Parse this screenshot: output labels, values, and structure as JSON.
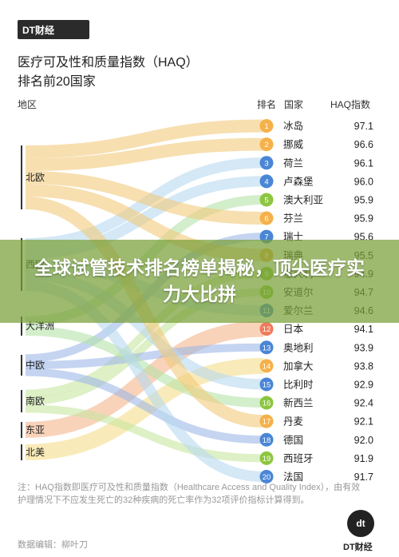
{
  "brand": {
    "name": "DT财经"
  },
  "heading": {
    "line1": "医疗可及性和质量指数（HAQ）",
    "line2": "排名前20国家"
  },
  "columns": {
    "region": "地区",
    "rank": "排名",
    "country": "国家",
    "haq": "HAQ指数"
  },
  "banner": {
    "text": "全球试管技术排名榜单揭秘，顶尖医疗实力大比拼"
  },
  "note": {
    "text": "注：HAQ指数即医疗可及性和质量指数（Healthcare Access and Quality Index），由有效护理情况下不应发生死亡的32种疾病的死亡率作为32项评价指标计算得到。"
  },
  "author": {
    "text": "数据编辑：柳叶刀"
  },
  "colors": {
    "北欧": "#f1ca7c",
    "西欧": "#b8d9f0",
    "大洋洲": "#b6e2a8",
    "中欧": "#9fb8e8",
    "南欧": "#c8e6a0",
    "东亚": "#f3b68c",
    "北美": "#f5dd8a",
    "badge_orange": "#f5b14a",
    "badge_blue": "#4a86d6",
    "badge_green": "#8cc63f",
    "badge_red": "#ef7b5c"
  },
  "chart_data": {
    "type": "table",
    "regions": [
      "北欧",
      "西欧",
      "大洋洲",
      "中欧",
      "南欧",
      "东亚",
      "北美"
    ],
    "rows": [
      {
        "rank": "1",
        "country": "冰岛",
        "haq": "97.1",
        "region": "北欧",
        "badge": "badge_orange"
      },
      {
        "rank": "2",
        "country": "挪威",
        "haq": "96.6",
        "region": "北欧",
        "badge": "badge_orange"
      },
      {
        "rank": "3",
        "country": "荷兰",
        "haq": "96.1",
        "region": "西欧",
        "badge": "badge_blue"
      },
      {
        "rank": "4",
        "country": "卢森堡",
        "haq": "96.0",
        "region": "西欧",
        "badge": "badge_blue"
      },
      {
        "rank": "5",
        "country": "澳大利亚",
        "haq": "95.9",
        "region": "大洋洲",
        "badge": "badge_green"
      },
      {
        "rank": "6",
        "country": "芬兰",
        "haq": "95.9",
        "region": "北欧",
        "badge": "badge_orange"
      },
      {
        "rank": "7",
        "country": "瑞士",
        "haq": "95.6",
        "region": "中欧",
        "badge": "badge_blue"
      },
      {
        "rank": "8",
        "country": "瑞典",
        "haq": "95.5",
        "region": "北欧",
        "badge": "badge_orange"
      },
      {
        "rank": "9",
        "country": "意大利",
        "haq": "94.9",
        "region": "南欧",
        "badge": "badge_green"
      },
      {
        "rank": "10",
        "country": "安道尔",
        "haq": "94.7",
        "region": "南欧",
        "badge": "badge_green"
      },
      {
        "rank": "11",
        "country": "爱尔兰",
        "haq": "94.6",
        "region": "西欧",
        "badge": "badge_blue"
      },
      {
        "rank": "12",
        "country": "日本",
        "haq": "94.1",
        "region": "东亚",
        "badge": "badge_red"
      },
      {
        "rank": "13",
        "country": "奥地利",
        "haq": "93.9",
        "region": "中欧",
        "badge": "badge_blue"
      },
      {
        "rank": "14",
        "country": "加拿大",
        "haq": "93.8",
        "region": "北美",
        "badge": "badge_orange"
      },
      {
        "rank": "15",
        "country": "比利时",
        "haq": "92.9",
        "region": "西欧",
        "badge": "badge_blue"
      },
      {
        "rank": "16",
        "country": "新西兰",
        "haq": "92.4",
        "region": "大洋洲",
        "badge": "badge_green"
      },
      {
        "rank": "17",
        "country": "丹麦",
        "haq": "92.1",
        "region": "北欧",
        "badge": "badge_orange"
      },
      {
        "rank": "18",
        "country": "德国",
        "haq": "92.0",
        "region": "中欧",
        "badge": "badge_blue"
      },
      {
        "rank": "19",
        "country": "西班牙",
        "haq": "91.9",
        "region": "南欧",
        "badge": "badge_green"
      },
      {
        "rank": "20",
        "country": "法国",
        "haq": "91.7",
        "region": "西欧",
        "badge": "badge_blue"
      }
    ]
  }
}
